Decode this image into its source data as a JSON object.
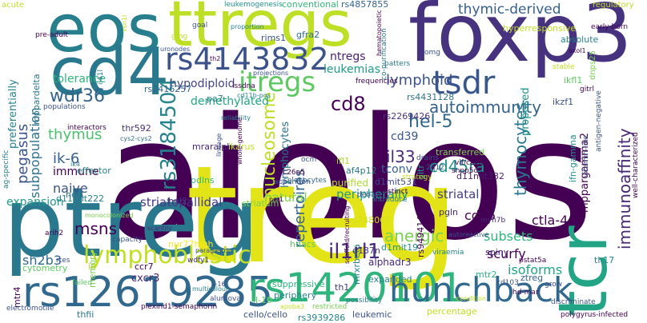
{
  "words": [
    {
      "t": "aiolos",
      "c": "#440154"
    },
    {
      "t": "treg",
      "c": "#e3e418"
    },
    {
      "t": "ptreg",
      "c": "#2a788e"
    },
    {
      "t": "foxp3",
      "c": "#46327e"
    },
    {
      "t": "eos",
      "c": "#277f8e"
    },
    {
      "t": "ttregs",
      "c": "#bddf26"
    },
    {
      "t": "cd4",
      "c": "#2a788e"
    },
    {
      "t": "tcr",
      "c": "#21a585"
    },
    {
      "t": "rs12619285",
      "c": "#31688e"
    },
    {
      "t": "rs1420101",
      "c": "#2fb47c"
    },
    {
      "t": "hunchback",
      "c": "#31688e"
    },
    {
      "t": "rs4143832",
      "c": "#3b528b"
    },
    {
      "t": "itregs",
      "c": "#5ec962"
    },
    {
      "t": "tsdr",
      "c": "#39568c"
    },
    {
      "t": "lymphoblastic",
      "c": "#c2df23"
    },
    {
      "t": "rs3184504",
      "c": "#25838e"
    },
    {
      "t": "cd8",
      "c": "#440154"
    },
    {
      "t": "nucleosome",
      "c": "#bddf26"
    },
    {
      "t": "il1rl1",
      "c": "#472d7b"
    },
    {
      "t": "thymic-derived",
      "c": "#355f8d"
    },
    {
      "t": "wdr36",
      "c": "#33638d"
    },
    {
      "t": "autoimmunity",
      "c": "#33638d"
    },
    {
      "t": "lymphoid",
      "c": "#3b528b"
    },
    {
      "t": "hel-5",
      "c": "#31688e"
    },
    {
      "t": "thymocytes",
      "c": "#2a788e"
    },
    {
      "t": "immunoaffinity",
      "c": "#482878"
    },
    {
      "t": "pegasus",
      "c": "#3b528b"
    },
    {
      "t": "subpopulation",
      "c": "#2c728e"
    },
    {
      "t": "il33",
      "c": "#472d7b"
    },
    {
      "t": "cd45ra",
      "c": "#20928c"
    },
    {
      "t": "ik-6",
      "c": "#355f8d"
    },
    {
      "t": "thymus",
      "c": "#4ac16d"
    },
    {
      "t": "repertoires",
      "c": "#33638d"
    },
    {
      "t": "anergic",
      "c": "#7ad151"
    },
    {
      "t": "msns",
      "c": "#440154"
    },
    {
      "t": "sh2b3",
      "c": "#31688e"
    },
    {
      "t": "striatopallidal",
      "c": "#443983"
    },
    {
      "t": "natural",
      "c": "#7ad151"
    },
    {
      "t": "peripherally",
      "c": "#1f988b"
    },
    {
      "t": "striatal",
      "c": "#433e85"
    },
    {
      "t": "ctla-4",
      "c": "#440154"
    },
    {
      "t": "scurfy",
      "c": "#440154"
    },
    {
      "t": "subsets",
      "c": "#2fb47c"
    },
    {
      "t": "leukemias",
      "c": "#1f988b"
    },
    {
      "t": "tolerance",
      "c": "#2fb47c"
    },
    {
      "t": "ntregs",
      "c": "#481f70"
    },
    {
      "t": "hypodiploid",
      "c": "#414487"
    },
    {
      "t": "demethylated",
      "c": "#21a585"
    },
    {
      "t": "naive",
      "c": "#3b528b"
    },
    {
      "t": "immune",
      "c": "#440154"
    },
    {
      "t": "expansion",
      "c": "#1f988b"
    },
    {
      "t": "tconv",
      "c": "#355f8d"
    },
    {
      "t": "cd39",
      "c": "#39568c"
    },
    {
      "t": "purified",
      "c": "#addc30"
    },
    {
      "t": "cd25",
      "c": "#440154"
    },
    {
      "t": "preferentially",
      "c": "#25838e"
    },
    {
      "t": "lymphocytes",
      "c": "#2c728e"
    },
    {
      "t": "memory",
      "c": "#7ad151"
    },
    {
      "t": "ccr7",
      "c": "#440154"
    },
    {
      "t": "cxcr3",
      "c": "#482878"
    },
    {
      "t": "isoforms",
      "c": "#21a585"
    },
    {
      "t": "proposed",
      "c": "#20928c"
    },
    {
      "t": "gitr",
      "c": "#1f988b"
    },
    {
      "t": "ikzf1",
      "c": "#3b528b"
    },
    {
      "t": "suppressive",
      "c": "#2fb47c"
    },
    {
      "t": "cytometry",
      "c": "#5ec962"
    },
    {
      "t": "ztreg",
      "c": "#33638d"
    },
    {
      "t": "mtr2",
      "c": "#29af7f"
    },
    {
      "t": "alphadr3",
      "c": "#482878"
    },
    {
      "t": "expanded",
      "c": "#26828e"
    },
    {
      "t": "pa7",
      "c": "#26828e"
    },
    {
      "t": "rs2416257",
      "c": "#31688e"
    },
    {
      "t": "effector",
      "c": "#26828e"
    },
    {
      "t": "pdlns",
      "c": "#35b779"
    },
    {
      "t": "d11mit222",
      "c": "#277f8e"
    },
    {
      "t": "d11mit332",
      "c": "#481f70"
    },
    {
      "t": "mrxrbeta",
      "c": "#26828e"
    },
    {
      "t": "th1",
      "c": "#453781"
    },
    {
      "t": "th17",
      "c": "#26828e"
    },
    {
      "t": "il-10",
      "c": "#5ec962"
    },
    {
      "t": "hel1",
      "c": "#2c728e"
    },
    {
      "t": "hel2",
      "c": "#453781"
    },
    {
      "t": "leukemic",
      "c": "#3b528b"
    },
    {
      "t": "percentage",
      "c": "#c2df23"
    },
    {
      "t": "cello/cello",
      "c": "#3b528b"
    },
    {
      "t": "rs3939286",
      "c": "#26828e"
    },
    {
      "t": "periphery",
      "c": "#26828e"
    },
    {
      "t": "spiny",
      "c": "#482878"
    },
    {
      "t": "transferred",
      "c": "#7ad151"
    },
    {
      "t": "ifn-gamma",
      "c": "#20928c"
    },
    {
      "t": "mppargamma2",
      "c": "#440154"
    },
    {
      "t": "ikfl1",
      "c": "#5ec962"
    },
    {
      "t": "rs4431128",
      "c": "#2c728e"
    },
    {
      "t": "rs2269426",
      "c": "#46327e"
    },
    {
      "t": "rs748065",
      "c": "#d2e21b"
    },
    {
      "t": "rs9494145",
      "c": "#440154"
    },
    {
      "t": "d1mit531",
      "c": "#3e4989"
    },
    {
      "t": "d1mit19",
      "c": "#20928c"
    },
    {
      "t": "d137n",
      "c": "#46327e"
    },
    {
      "t": "hdacs",
      "c": "#5ec962"
    },
    {
      "t": "nur77high",
      "c": "#fde725"
    },
    {
      "t": "mraralpha",
      "c": "#482878"
    },
    {
      "t": "thr592",
      "c": "#46327e"
    },
    {
      "t": "ikarus",
      "c": "#bddf26"
    },
    {
      "t": "striatum",
      "c": "#7ad151"
    },
    {
      "t": "conventional",
      "c": "#35b779"
    },
    {
      "t": "rs4857855",
      "c": "#33638d"
    },
    {
      "t": "ifl",
      "c": "#addc30"
    },
    {
      "t": "ifl1",
      "c": "#addc30"
    },
    {
      "t": "pgln",
      "c": "#482878"
    },
    {
      "t": "af4p12",
      "c": "#2a788e"
    },
    {
      "t": "thfii",
      "c": "#2a788e"
    },
    {
      "t": "mtr4",
      "c": "#440154"
    },
    {
      "t": "mppardelta",
      "c": "#2a788e"
    },
    {
      "t": "hyperresponsive",
      "c": "#c2df23"
    },
    {
      "t": "absolute",
      "c": "#26828e"
    },
    {
      "t": "rims1",
      "c": "#3b528b"
    },
    {
      "t": "gfra2",
      "c": "#31688e"
    },
    {
      "t": "leukemogenesis",
      "c": "#20928c"
    },
    {
      "t": "acute",
      "c": "#bddf26"
    },
    {
      "t": "regulatory",
      "c": "#bddf26"
    },
    {
      "t": "early-born",
      "c": "#440154"
    },
    {
      "t": "dnps25",
      "c": "#7ad151"
    },
    {
      "t": "patters",
      "c": "#2a788e"
    },
    {
      "t": "co-purification",
      "c": "#2a788e"
    },
    {
      "t": "omg",
      "c": "#3b528b"
    },
    {
      "t": "frequencies",
      "c": "#440154"
    },
    {
      "t": "reliability",
      "c": "#26828e"
    },
    {
      "t": "projections",
      "c": "#3b528b"
    },
    {
      "t": "lssdna",
      "c": "#440154"
    },
    {
      "t": "populations",
      "c": "#3b528b"
    },
    {
      "t": "interactors",
      "c": "#440154"
    },
    {
      "t": "cys2-cys2",
      "c": "#31688e"
    },
    {
      "t": "ag-specific",
      "c": "#26828e"
    },
    {
      "t": "ik4",
      "c": "#2a788e"
    },
    {
      "t": "arih2",
      "c": "#440154"
    },
    {
      "t": "rtes",
      "c": "#3b528b"
    },
    {
      "t": "failed",
      "c": "#5ec962"
    },
    {
      "t": "electromotile",
      "c": "#3b528b"
    },
    {
      "t": "plexind1-semaphorin",
      "c": "#440154"
    },
    {
      "t": "alumova",
      "c": "#3b528b"
    },
    {
      "t": "restricted",
      "c": "#7ad151"
    },
    {
      "t": "possibility",
      "c": "#2a788e"
    },
    {
      "t": "polygyrus-infected",
      "c": "#440154"
    },
    {
      "t": "condition",
      "c": "#c2df23"
    },
    {
      "t": "discriminate",
      "c": "#3b528b"
    },
    {
      "t": "hd-mar",
      "c": "#440154"
    },
    {
      "t": "pstat5a",
      "c": "#440154"
    },
    {
      "t": "cd103",
      "c": "#3b528b"
    },
    {
      "t": "myh7b",
      "c": "#482878"
    },
    {
      "t": "viraemia",
      "c": "#26828e"
    },
    {
      "t": "autoreactive",
      "c": "#3b528b"
    },
    {
      "t": "scaffold/recruiting",
      "c": "#440154"
    },
    {
      "t": "paragastric",
      "c": "#3b528b"
    },
    {
      "t": "wdfy1",
      "c": "#482878"
    },
    {
      "t": "capacity",
      "c": "#3b528b"
    },
    {
      "t": "scantily",
      "c": "#482878"
    },
    {
      "t": "multicolour",
      "c": "#26828e"
    },
    {
      "t": "v-16",
      "c": "#3b528b"
    },
    {
      "t": "apoba3",
      "c": "#c2df23"
    },
    {
      "t": "distinct",
      "c": "#440154"
    },
    {
      "t": "debate",
      "c": "#3b528b"
    },
    {
      "t": "introduce",
      "c": "#26828e"
    },
    {
      "t": "vif/cbfss",
      "c": "#440154"
    },
    {
      "t": "2q12",
      "c": "#3b528b"
    },
    {
      "t": "snpp5d",
      "c": "#440154"
    },
    {
      "t": "drains",
      "c": "#3b528b"
    },
    {
      "t": "strategy",
      "c": "#c2df23"
    },
    {
      "t": "slc26a5",
      "c": "#440154"
    },
    {
      "t": "apparition",
      "c": "#3b528b"
    },
    {
      "t": "splenocytes",
      "c": "#31688e"
    },
    {
      "t": "ocm",
      "c": "#3b528b"
    },
    {
      "t": "ncr1",
      "c": "#440154"
    },
    {
      "t": "stable",
      "c": "#c2df23"
    },
    {
      "t": "grow",
      "c": "#3b528b"
    },
    {
      "t": "well-characterized",
      "c": "#440154"
    },
    {
      "t": "vitamin-like",
      "c": "#3b528b"
    },
    {
      "t": "antigen-negative",
      "c": "#3b528b"
    },
    {
      "t": "gitrl",
      "c": "#440154"
    },
    {
      "t": "gmg",
      "c": "#bddf26"
    },
    {
      "t": "goal",
      "c": "#3b528b"
    },
    {
      "t": "proportion",
      "c": "#26828e"
    },
    {
      "t": "pre-adult",
      "c": "#440154"
    },
    {
      "t": "uronodes",
      "c": "#3b528b"
    },
    {
      "t": "th2",
      "c": "#440154"
    },
    {
      "t": "il41l",
      "c": "#2a788e"
    },
    {
      "t": "whole-genome",
      "c": "#440154"
    },
    {
      "t": "lineage",
      "c": "#3b528b"
    },
    {
      "t": "monocolonized",
      "c": "#7ad151"
    },
    {
      "t": "vsn1l",
      "c": "#c2df23"
    },
    {
      "t": "axol1",
      "c": "#440154"
    },
    {
      "t": "cd11b-pos",
      "c": "#26828e"
    },
    {
      "t": "hematopoietic",
      "c": "#440154"
    }
  ]
}
